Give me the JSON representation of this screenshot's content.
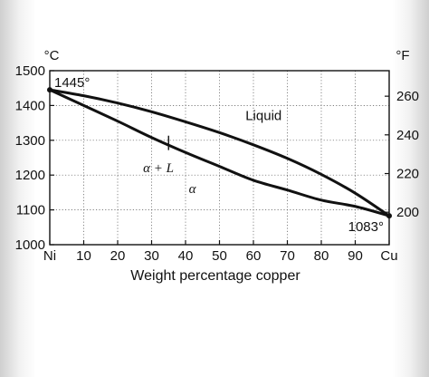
{
  "chart_data": {
    "type": "line",
    "title": "",
    "xlabel": "Weight percentage copper",
    "ylabel_left": "°C",
    "ylabel_right": "°F",
    "x_ticks": [
      "Ni",
      "10",
      "20",
      "30",
      "40",
      "50",
      "60",
      "70",
      "80",
      "90",
      "Cu"
    ],
    "x_tick_values": [
      0,
      10,
      20,
      30,
      40,
      50,
      60,
      70,
      80,
      90,
      100
    ],
    "xlim": [
      0,
      100
    ],
    "ylim": [
      1000,
      1500
    ],
    "y_ticks": [
      1000,
      1100,
      1200,
      1300,
      1400,
      1500
    ],
    "y_right_ticks": [
      {
        "label": "200",
        "celsius": 1093.3
      },
      {
        "label": "220",
        "celsius": 1204.4
      },
      {
        "label": "240",
        "celsius": 1315.6
      },
      {
        "label": "260",
        "celsius": 1426.7
      }
    ],
    "grid": "dotted",
    "series": [
      {
        "role": "liquidus",
        "x": [
          0,
          10,
          20,
          30,
          40,
          50,
          60,
          70,
          80,
          90,
          100
        ],
        "y": [
          1445,
          1428,
          1407,
          1382,
          1353,
          1322,
          1287,
          1248,
          1202,
          1148,
          1083
        ]
      },
      {
        "role": "solidus",
        "x": [
          0,
          10,
          20,
          30,
          40,
          50,
          60,
          70,
          80,
          90,
          100
        ],
        "y": [
          1445,
          1400,
          1355,
          1308,
          1265,
          1225,
          1185,
          1157,
          1128,
          1110,
          1083
        ]
      }
    ],
    "annotations": [
      {
        "text": "1445°",
        "x": 0,
        "y": 1445
      },
      {
        "text": "1083°",
        "x": 100,
        "y": 1083
      },
      {
        "text": "Liquid",
        "x": 63,
        "y": 1358
      },
      {
        "text": "α + L",
        "x": 32,
        "y": 1208
      },
      {
        "text": "α",
        "x": 42,
        "y": 1148
      }
    ],
    "tie_line": {
      "x": 35,
      "y": [
        1308,
        1277
      ]
    }
  }
}
